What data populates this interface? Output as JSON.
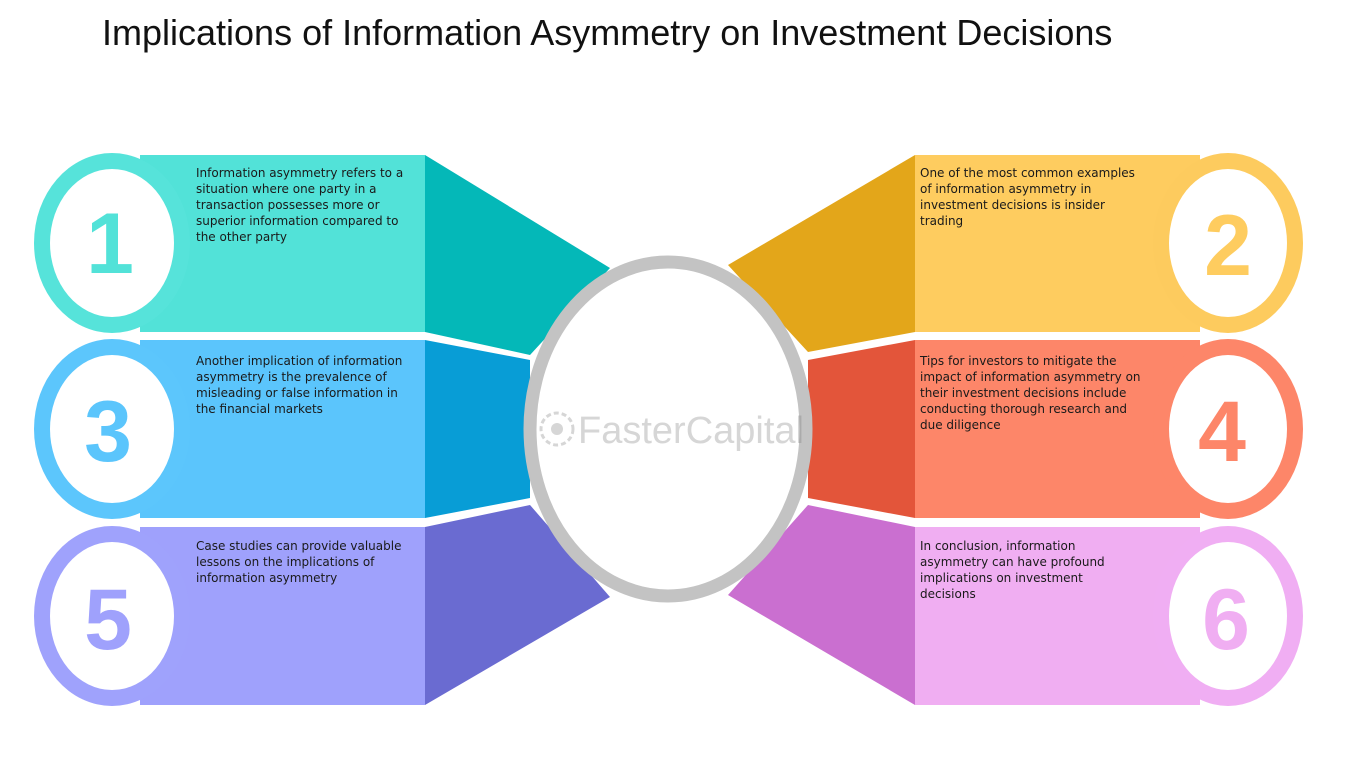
{
  "title": "Implications of Information Asymmetry on Investment Decisions",
  "watermark": "FasterCapital",
  "items": [
    {
      "number": "1",
      "text": "Information asymmetry refers to a situation where one party in a transaction possesses more or superior information compared to the other party",
      "color_light": "#52E2D8",
      "color_dark": "#04B8B8",
      "ring": "#56E3DA"
    },
    {
      "number": "2",
      "text": "One of the most common examples of information asymmetry in investment decisions is insider trading",
      "color_light": "#FECC5F",
      "color_dark": "#E3A61A",
      "ring": "#FDCB5E"
    },
    {
      "number": "3",
      "text": "Another implication of information asymmetry is the prevalence of misleading or false information in the financial markets",
      "color_light": "#5BC5FC",
      "color_dark": "#089DD6",
      "ring": "#5CC6FC"
    },
    {
      "number": "4",
      "text": "Tips for investors to mitigate the impact of information asymmetry on their investment decisions include conducting thorough research and due diligence",
      "color_light": "#FD8669",
      "color_dark": "#E3553A",
      "ring": "#FD8669"
    },
    {
      "number": "5",
      "text": "Case studies can provide valuable lessons on the implications of information asymmetry",
      "color_light": "#9FA1FC",
      "color_dark": "#6A6BD1",
      "ring": "#9FA2FC"
    },
    {
      "number": "6",
      "text": "In conclusion, information asymmetry can have profound implications on investment decisions",
      "color_light": "#F0AEF2",
      "color_dark": "#CA6FD0",
      "ring": "#F0AEF3"
    }
  ]
}
